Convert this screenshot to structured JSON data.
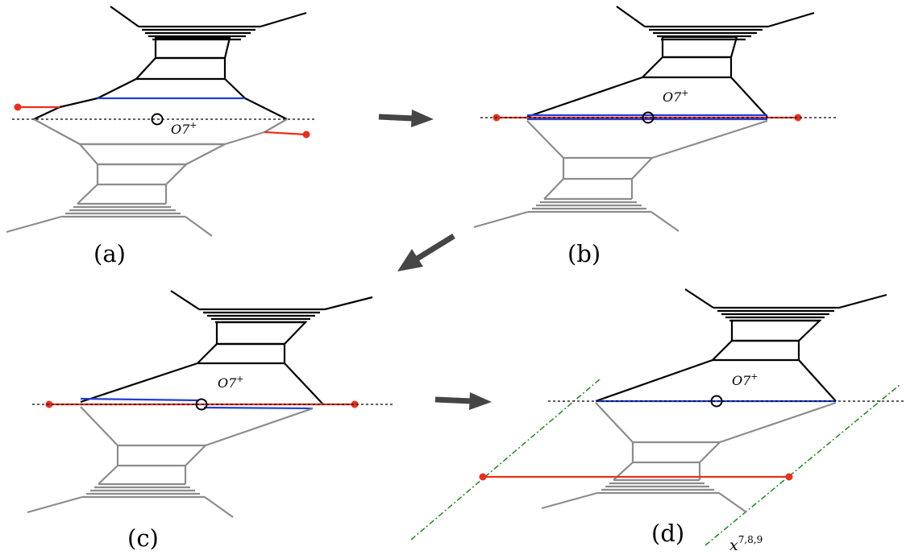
{
  "panels": [
    {
      "id": "a",
      "label": "(a)",
      "orientifold": {
        "name": "O7",
        "sup": "+"
      }
    },
    {
      "id": "b",
      "label": "(b)",
      "orientifold": {
        "name": "O7",
        "sup": "+"
      }
    },
    {
      "id": "c",
      "label": "(c)",
      "orientifold": {
        "name": "O7",
        "sup": "+"
      }
    },
    {
      "id": "d",
      "label": "(d)",
      "orientifold": {
        "name": "O7",
        "sup": "+"
      },
      "sevenbrane_label": {
        "name": "x",
        "sup": "7,8,9"
      }
    }
  ],
  "colors": {
    "upper_web": "#000000",
    "mirror_web": "#8c8c8c",
    "color_brane": "#1f3fd6",
    "flavor_brane": "#e8301c",
    "sevenbrane_line": "#1a8c1a",
    "arrow": "#454545"
  }
}
